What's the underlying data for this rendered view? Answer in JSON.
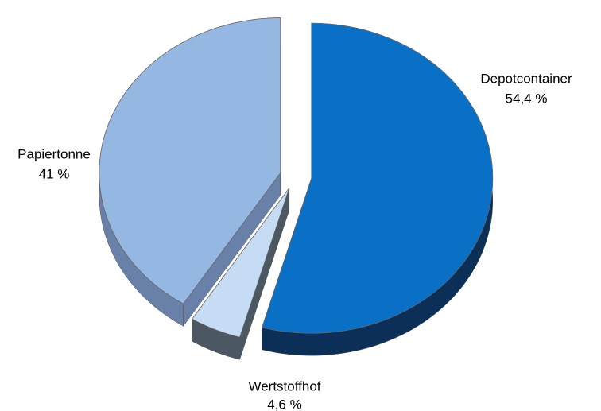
{
  "chart_data": {
    "type": "pie",
    "categories": [
      "Depotcontainer",
      "Wertstoffhof",
      "Papiertonne"
    ],
    "values": [
      54.4,
      4.6,
      41
    ],
    "value_labels": [
      "54,4 %",
      "4,6 %",
      "41 %"
    ],
    "colors": [
      "#0a70c6",
      "#c6dbf4",
      "#95b8e3"
    ],
    "side_colors": [
      "#0b2f57",
      "#4b5763",
      "#6981a9"
    ]
  }
}
